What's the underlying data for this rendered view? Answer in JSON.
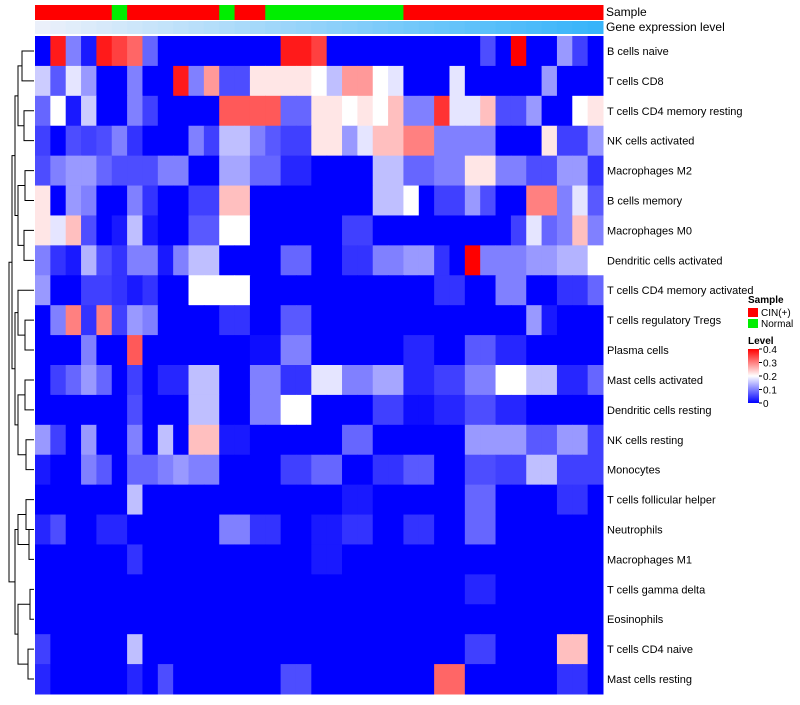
{
  "chart_data": {
    "type": "heatmap",
    "title": "",
    "annotation_tracks": [
      {
        "name": "Sample",
        "values": [
          "CIN(+)",
          "CIN(+)",
          "CIN(+)",
          "CIN(+)",
          "CIN(+)",
          "Normal",
          "CIN(+)",
          "CIN(+)",
          "CIN(+)",
          "CIN(+)",
          "CIN(+)",
          "CIN(+)",
          "Normal",
          "CIN(+)",
          "CIN(+)",
          "Normal",
          "Normal",
          "Normal",
          "Normal",
          "Normal",
          "Normal",
          "Normal",
          "Normal",
          "Normal",
          "CIN(+)",
          "CIN(+)",
          "CIN(+)",
          "CIN(+)",
          "CIN(+)",
          "CIN(+)",
          "CIN(+)",
          "CIN(+)",
          "CIN(+)",
          "CIN(+)",
          "CIN(+)",
          "CIN(+)",
          "CIN(+)"
        ]
      },
      {
        "name": "Gene expression level",
        "values": [
          1,
          2,
          3,
          4,
          5,
          6,
          7,
          8,
          9,
          10,
          11,
          12,
          13,
          14,
          15,
          16,
          17,
          18,
          19,
          20,
          21,
          22,
          23,
          24,
          25,
          26,
          27,
          28,
          29,
          30,
          31,
          32,
          33,
          34,
          35,
          36,
          37
        ]
      }
    ],
    "rows": [
      "B cells naive",
      "T cells CD8",
      "T cells CD4 memory resting",
      "NK cells activated",
      "Macrophages M2",
      "B cells memory",
      "Macrophages M0",
      "Dendritic cells activated",
      "T cells CD4 memory activated",
      "T cells regulatory  Tregs",
      "Plasma cells",
      "Mast cells activated",
      "Dendritic cells resting",
      "NK cells resting",
      "Monocytes",
      "T cells follicular helper",
      "Neutrophils",
      "Macrophages M1",
      "T cells gamma delta",
      "Eosinophils",
      "T cells CD4 naive",
      "Mast cells resting"
    ],
    "values": [
      [
        0.0,
        0.38,
        0.1,
        0.02,
        0.38,
        0.35,
        0.32,
        0.08,
        0.0,
        0.0,
        0.0,
        0.0,
        0.0,
        0.0,
        0.0,
        0.0,
        0.38,
        0.38,
        0.35,
        0.0,
        0.0,
        0.0,
        0.0,
        0.0,
        0.0,
        0.0,
        0.0,
        0.0,
        0.0,
        0.06,
        0.0,
        0.4,
        0.0,
        0.0,
        0.12,
        0.05,
        0.0
      ],
      [
        0.16,
        0.07,
        0.18,
        0.12,
        0.0,
        0.0,
        0.1,
        0.0,
        0.0,
        0.38,
        0.1,
        0.28,
        0.06,
        0.06,
        0.22,
        0.22,
        0.22,
        0.22,
        0.2,
        0.15,
        0.28,
        0.28,
        0.2,
        0.18,
        0.0,
        0.0,
        0.0,
        0.18,
        0.0,
        0.0,
        0.0,
        0.0,
        0.0,
        0.12,
        0.0,
        0.0,
        0.0
      ],
      [
        0.08,
        0.2,
        0.02,
        0.16,
        0.0,
        0.0,
        0.1,
        0.05,
        0.0,
        0.0,
        0.0,
        0.0,
        0.33,
        0.33,
        0.33,
        0.33,
        0.08,
        0.08,
        0.22,
        0.22,
        0.2,
        0.22,
        0.2,
        0.25,
        0.1,
        0.1,
        0.36,
        0.18,
        0.18,
        0.25,
        0.06,
        0.06,
        0.12,
        0.0,
        0.0,
        0.2,
        0.22
      ],
      [
        0.05,
        0.0,
        0.06,
        0.05,
        0.06,
        0.1,
        0.04,
        0.0,
        0.0,
        0.0,
        0.1,
        0.05,
        0.15,
        0.15,
        0.1,
        0.07,
        0.05,
        0.05,
        0.22,
        0.22,
        0.12,
        0.18,
        0.25,
        0.25,
        0.3,
        0.3,
        0.1,
        0.1,
        0.1,
        0.1,
        0.0,
        0.0,
        0.0,
        0.22,
        0.05,
        0.05,
        0.12
      ],
      [
        0.06,
        0.1,
        0.12,
        0.12,
        0.08,
        0.06,
        0.06,
        0.06,
        0.1,
        0.1,
        0.0,
        0.0,
        0.13,
        0.13,
        0.08,
        0.08,
        0.03,
        0.03,
        0.0,
        0.0,
        0.0,
        0.0,
        0.15,
        0.15,
        0.08,
        0.08,
        0.1,
        0.1,
        0.22,
        0.22,
        0.1,
        0.1,
        0.06,
        0.06,
        0.12,
        0.12,
        0.04
      ],
      [
        0.22,
        0.0,
        0.12,
        0.1,
        0.0,
        0.0,
        0.1,
        0.04,
        0.0,
        0.0,
        0.05,
        0.05,
        0.25,
        0.25,
        0.0,
        0.0,
        0.0,
        0.0,
        0.0,
        0.0,
        0.0,
        0.0,
        0.15,
        0.15,
        0.2,
        0.0,
        0.05,
        0.05,
        0.12,
        0.06,
        0.0,
        0.0,
        0.3,
        0.3,
        0.1,
        0.18,
        0.07
      ],
      [
        0.22,
        0.18,
        0.25,
        0.06,
        0.0,
        0.02,
        0.15,
        0.02,
        0.0,
        0.0,
        0.07,
        0.07,
        0.2,
        0.2,
        0.0,
        0.0,
        0.0,
        0.0,
        0.0,
        0.0,
        0.05,
        0.05,
        0.0,
        0.0,
        0.0,
        0.0,
        0.0,
        0.0,
        0.0,
        0.0,
        0.0,
        0.05,
        0.18,
        0.08,
        0.1,
        0.25,
        0.1
      ],
      [
        0.1,
        0.04,
        0.02,
        0.14,
        0.06,
        0.04,
        0.1,
        0.1,
        0.02,
        0.1,
        0.15,
        0.15,
        0.0,
        0.0,
        0.0,
        0.0,
        0.08,
        0.08,
        0.0,
        0.0,
        0.04,
        0.04,
        0.1,
        0.1,
        0.12,
        0.12,
        0.04,
        0.0,
        0.4,
        0.1,
        0.1,
        0.1,
        0.12,
        0.12,
        0.14,
        0.14,
        0.2
      ],
      [
        0.12,
        0.0,
        0.0,
        0.05,
        0.05,
        0.04,
        0.02,
        0.04,
        0.0,
        0.0,
        0.2,
        0.2,
        0.2,
        0.2,
        0.0,
        0.0,
        0.0,
        0.0,
        0.0,
        0.0,
        0.0,
        0.0,
        0.0,
        0.0,
        0.0,
        0.0,
        0.04,
        0.04,
        0.0,
        0.0,
        0.1,
        0.1,
        0.0,
        0.0,
        0.04,
        0.04,
        0.08
      ],
      [
        0.0,
        0.1,
        0.3,
        0.04,
        0.3,
        0.05,
        0.12,
        0.1,
        0.0,
        0.0,
        0.0,
        0.0,
        0.04,
        0.04,
        0.0,
        0.0,
        0.07,
        0.07,
        0.0,
        0.0,
        0.0,
        0.0,
        0.0,
        0.0,
        0.0,
        0.0,
        0.0,
        0.0,
        0.0,
        0.0,
        0.0,
        0.0,
        0.12,
        0.02,
        0.0,
        0.0,
        0.0
      ],
      [
        0.0,
        0.0,
        0.0,
        0.1,
        0.0,
        0.0,
        0.33,
        0.0,
        0.0,
        0.0,
        0.0,
        0.0,
        0.0,
        0.0,
        0.01,
        0.01,
        0.1,
        0.1,
        0.0,
        0.0,
        0.0,
        0.0,
        0.0,
        0.0,
        0.03,
        0.03,
        0.0,
        0.0,
        0.07,
        0.07,
        0.03,
        0.03,
        0.0,
        0.0,
        0.0,
        0.0,
        0.0
      ],
      [
        0.0,
        0.05,
        0.08,
        0.12,
        0.08,
        0.0,
        0.05,
        0.0,
        0.03,
        0.03,
        0.15,
        0.15,
        0.0,
        0.0,
        0.1,
        0.1,
        0.04,
        0.04,
        0.18,
        0.18,
        0.1,
        0.1,
        0.13,
        0.13,
        0.03,
        0.03,
        0.05,
        0.05,
        0.1,
        0.1,
        0.2,
        0.2,
        0.15,
        0.15,
        0.03,
        0.03,
        0.08
      ],
      [
        0.0,
        0.0,
        0.0,
        0.0,
        0.0,
        0.0,
        0.06,
        0.0,
        0.0,
        0.0,
        0.15,
        0.15,
        0.0,
        0.0,
        0.1,
        0.1,
        0.2,
        0.2,
        0.0,
        0.0,
        0.0,
        0.0,
        0.05,
        0.05,
        0.01,
        0.01,
        0.03,
        0.03,
        0.06,
        0.06,
        0.03,
        0.03,
        0.0,
        0.0,
        0.0,
        0.0,
        0.0
      ],
      [
        0.12,
        0.05,
        0.0,
        0.12,
        0.0,
        0.0,
        0.1,
        0.0,
        0.15,
        0.0,
        0.25,
        0.25,
        0.02,
        0.02,
        0.0,
        0.0,
        0.0,
        0.0,
        0.0,
        0.0,
        0.08,
        0.08,
        0.0,
        0.0,
        0.0,
        0.0,
        0.0,
        0.0,
        0.12,
        0.12,
        0.12,
        0.12,
        0.07,
        0.07,
        0.12,
        0.12,
        0.05
      ],
      [
        0.02,
        0.0,
        0.0,
        0.1,
        0.07,
        0.0,
        0.08,
        0.08,
        0.1,
        0.12,
        0.1,
        0.1,
        0.0,
        0.0,
        0.0,
        0.0,
        0.05,
        0.05,
        0.08,
        0.08,
        0.0,
        0.0,
        0.04,
        0.04,
        0.07,
        0.07,
        0.0,
        0.0,
        0.06,
        0.06,
        0.05,
        0.05,
        0.15,
        0.15,
        0.05,
        0.05,
        0.05
      ],
      [
        0.0,
        0.0,
        0.0,
        0.0,
        0.0,
        0.0,
        0.15,
        0.0,
        0.0,
        0.0,
        0.0,
        0.0,
        0.0,
        0.0,
        0.0,
        0.0,
        0.0,
        0.0,
        0.0,
        0.0,
        0.02,
        0.02,
        0.0,
        0.0,
        0.0,
        0.0,
        0.0,
        0.0,
        0.08,
        0.08,
        0.0,
        0.0,
        0.0,
        0.0,
        0.04,
        0.04,
        0.0
      ],
      [
        0.03,
        0.06,
        0.0,
        0.0,
        0.03,
        0.03,
        0.0,
        0.0,
        0.0,
        0.0,
        0.0,
        0.0,
        0.1,
        0.1,
        0.04,
        0.04,
        0.0,
        0.0,
        0.02,
        0.02,
        0.04,
        0.04,
        0.0,
        0.0,
        0.04,
        0.04,
        0.0,
        0.0,
        0.08,
        0.08,
        0.0,
        0.0,
        0.0,
        0.0,
        0.0,
        0.0,
        0.0
      ],
      [
        0.0,
        0.0,
        0.0,
        0.0,
        0.0,
        0.0,
        0.04,
        0.0,
        0.0,
        0.0,
        0.0,
        0.0,
        0.0,
        0.0,
        0.0,
        0.0,
        0.0,
        0.0,
        0.02,
        0.02,
        0.0,
        0.0,
        0.0,
        0.0,
        0.0,
        0.0,
        0.0,
        0.0,
        0.0,
        0.0,
        0.0,
        0.0,
        0.0,
        0.0,
        0.0,
        0.0,
        0.0
      ],
      [
        0.0,
        0.0,
        0.0,
        0.0,
        0.0,
        0.0,
        0.0,
        0.0,
        0.0,
        0.0,
        0.0,
        0.0,
        0.0,
        0.0,
        0.0,
        0.0,
        0.0,
        0.0,
        0.0,
        0.0,
        0.0,
        0.0,
        0.0,
        0.0,
        0.0,
        0.0,
        0.0,
        0.0,
        0.03,
        0.03,
        0.0,
        0.0,
        0.0,
        0.0,
        0.0,
        0.0,
        0.0
      ],
      [
        0.0,
        0.0,
        0.0,
        0.0,
        0.0,
        0.0,
        0.0,
        0.0,
        0.0,
        0.0,
        0.0,
        0.0,
        0.0,
        0.0,
        0.0,
        0.0,
        0.0,
        0.0,
        0.0,
        0.0,
        0.0,
        0.0,
        0.0,
        0.0,
        0.0,
        0.0,
        0.0,
        0.0,
        0.0,
        0.0,
        0.0,
        0.0,
        0.0,
        0.0,
        0.0,
        0.0,
        0.0
      ],
      [
        0.05,
        0.0,
        0.0,
        0.0,
        0.0,
        0.0,
        0.15,
        0.0,
        0.0,
        0.0,
        0.0,
        0.0,
        0.0,
        0.0,
        0.0,
        0.0,
        0.0,
        0.0,
        0.0,
        0.0,
        0.0,
        0.0,
        0.0,
        0.0,
        0.0,
        0.0,
        0.0,
        0.0,
        0.05,
        0.05,
        0.0,
        0.0,
        0.0,
        0.0,
        0.25,
        0.25,
        0.0
      ],
      [
        0.03,
        0.0,
        0.0,
        0.0,
        0.0,
        0.0,
        0.03,
        0.0,
        0.06,
        0.0,
        0.0,
        0.0,
        0.0,
        0.0,
        0.0,
        0.0,
        0.06,
        0.06,
        0.0,
        0.0,
        0.0,
        0.0,
        0.0,
        0.0,
        0.0,
        0.0,
        0.32,
        0.32,
        0.0,
        0.0,
        0.0,
        0.0,
        0.0,
        0.0,
        0.04,
        0.04,
        0.0
      ]
    ],
    "color_scale": {
      "min": 0,
      "max": 0.4,
      "low": "#0000ff",
      "mid": "#ffffff",
      "high": "#ff0000",
      "mid_value": 0.2
    },
    "legend": {
      "sample": {
        "title": "Sample",
        "items": [
          {
            "label": "CIN(+)",
            "color": "#ff0000"
          },
          {
            "label": "Normal",
            "color": "#00ee00"
          }
        ]
      },
      "level": {
        "title": "Level",
        "ticks": [
          "0.4",
          "0.3",
          "0.2",
          "0.1",
          "0"
        ],
        "tick_values": [
          0.4,
          0.3,
          0.2,
          0.1,
          0
        ]
      }
    },
    "dendrogram": "row"
  }
}
